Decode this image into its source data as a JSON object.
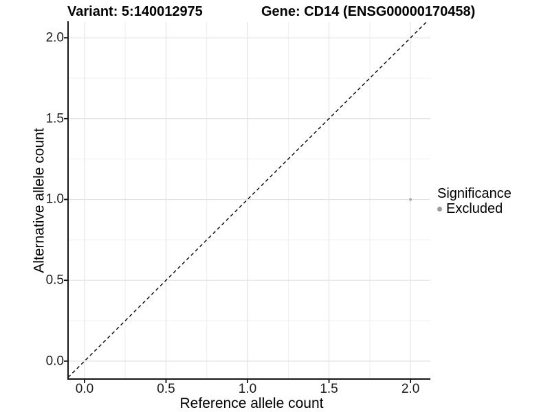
{
  "chart_data": {
    "type": "scatter",
    "title_left": "Variant: 5:140012975",
    "title_right": "Gene: CD14 (ENSG00000170458)",
    "xlabel": "Reference allele count",
    "ylabel": "Alternative allele count",
    "xlim": [
      -0.101,
      2.122
    ],
    "ylim": [
      -0.111,
      2.098
    ],
    "x_ticks": [
      0.0,
      0.5,
      1.0,
      1.5,
      2.0
    ],
    "y_ticks": [
      0.0,
      0.5,
      1.0,
      1.5,
      2.0
    ],
    "x_minor_ticks": [
      0.25,
      0.75,
      1.25,
      1.75
    ],
    "y_minor_ticks": [
      0.25,
      0.75,
      1.25,
      1.75
    ],
    "tick_decimals": 1,
    "grid": true,
    "identity_line": {
      "style": "dashed",
      "color": "#000000"
    },
    "points": [
      {
        "x": 2.0,
        "y": 1.0,
        "series": "Excluded"
      }
    ],
    "series": [
      {
        "name": "Excluded",
        "color": "#ababab"
      }
    ],
    "legend": {
      "title": "Significance",
      "position": "right",
      "items": [
        {
          "label": "Excluded",
          "color": "#9b9b9b"
        }
      ]
    },
    "colors": {
      "background": "#ffffff",
      "grid_major": "#e3e3e3",
      "grid_minor": "#efefef",
      "axis_line": "#151515",
      "tick_mark": "#151515",
      "axis_text": "#1c1c1c"
    }
  }
}
